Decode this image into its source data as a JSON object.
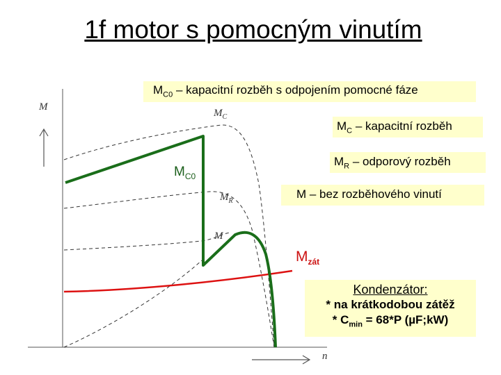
{
  "title": "1f motor s pomocným vinutím",
  "axes": {
    "y_label": "M",
    "x_label": "n"
  },
  "curve_labels": {
    "mc": {
      "main": "M",
      "sub": "C"
    },
    "mr": {
      "main": "M",
      "sub": "R"
    },
    "m": "M"
  },
  "boxes": {
    "mc0_desc": {
      "main": "M",
      "sub": "C0",
      "rest": " – kapacitní rozběh s odpojením pomocné fáze"
    },
    "mc_desc": {
      "main": "M",
      "sub": "C",
      "rest": " – kapacitní rozběh"
    },
    "mr_desc": {
      "main": "M",
      "sub": "R",
      "rest": " – odporový rozběh"
    },
    "m_desc": "M – bez rozběhového vinutí"
  },
  "markers": {
    "mc0": {
      "main": "M",
      "sub": "C0"
    },
    "mzat": {
      "main": "M",
      "sub": "zát"
    }
  },
  "capacitor_note": {
    "heading": "Kondenzátor:",
    "line1": "* na krátkodobou zátěž",
    "line2_pre": "* C",
    "line2_sub": "min",
    "line2_post": " = 68*P (µF;kW)"
  },
  "colors": {
    "green": "#1a6e1a",
    "red": "#dd1111",
    "box_bg": "#ffffcc",
    "dashed": "#333333"
  }
}
